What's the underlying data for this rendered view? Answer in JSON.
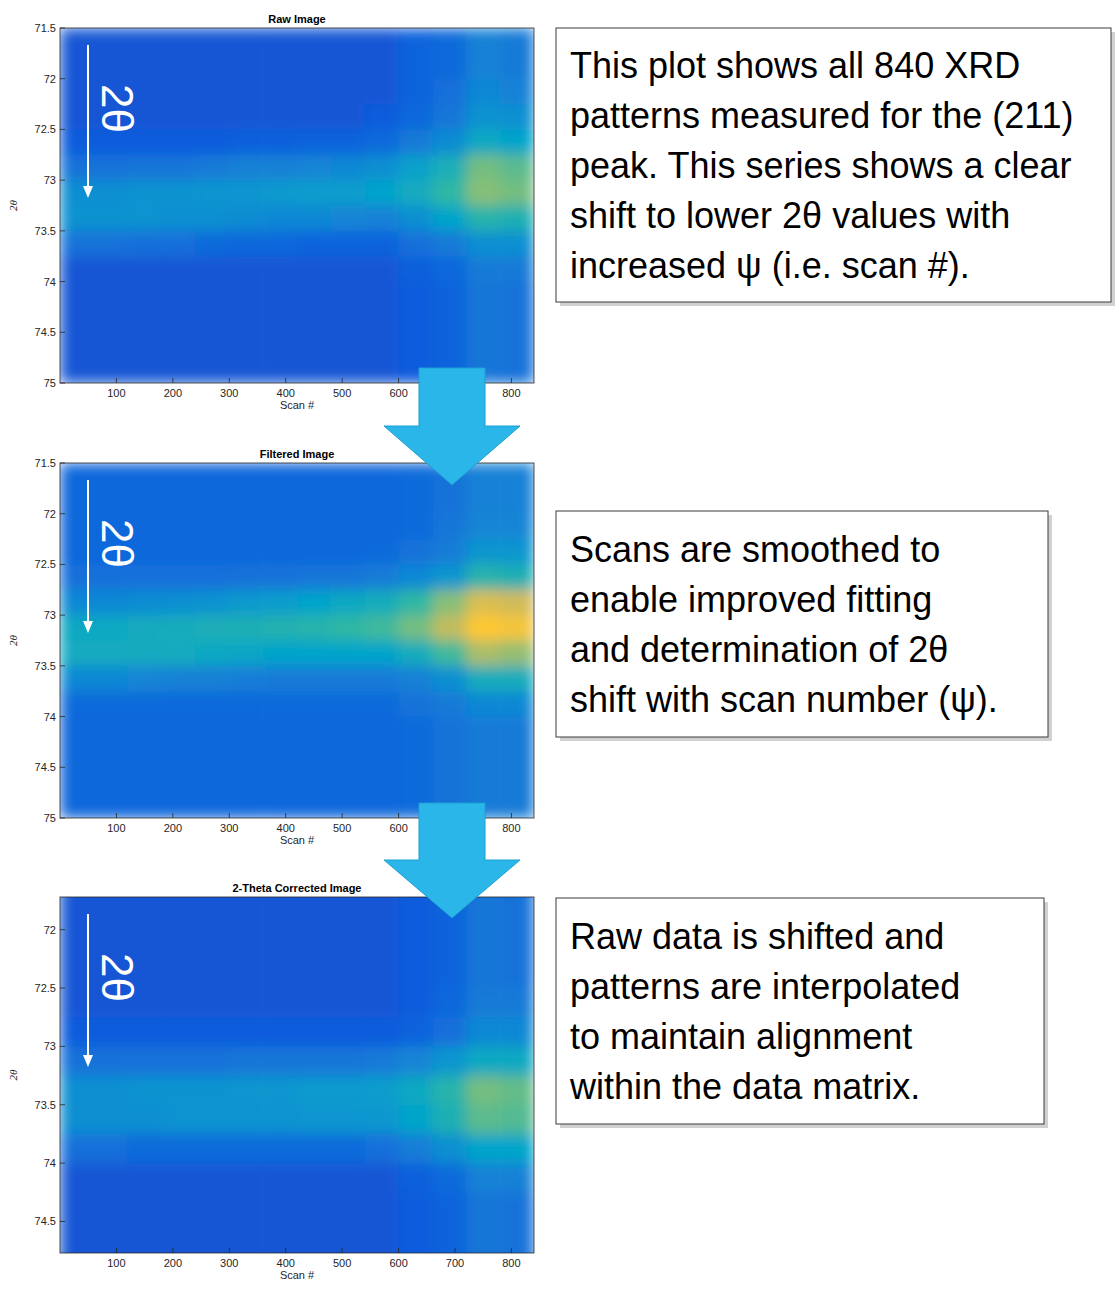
{
  "chart_data": [
    {
      "type": "heatmap",
      "title": "Raw Image",
      "x_label": "Scan #",
      "y_label": "2θ",
      "xlim": [
        0,
        840
      ],
      "ylim": [
        75,
        71.5
      ],
      "xticks": [
        100,
        200,
        300,
        400,
        500,
        600,
        800
      ],
      "yticks": [
        71.5,
        72,
        72.5,
        73,
        73.5,
        74,
        74.5,
        75
      ],
      "x_bins": [
        0,
        60,
        120,
        180,
        240,
        300,
        360,
        420,
        480,
        540,
        600,
        660,
        720,
        780,
        840
      ],
      "y_bins": [
        71.5,
        71.75,
        72,
        72.25,
        72.5,
        72.75,
        73,
        73.25,
        73.5,
        73.75,
        74,
        74.25,
        74.5,
        74.75,
        75
      ],
      "cells": [
        [
          0.09,
          0.09,
          0.09,
          0.09,
          0.09,
          0.09,
          0.09,
          0.09,
          0.09,
          0.09,
          0.12,
          0.14,
          0.2,
          0.18
        ],
        [
          0.09,
          0.09,
          0.09,
          0.09,
          0.09,
          0.09,
          0.09,
          0.09,
          0.09,
          0.09,
          0.12,
          0.14,
          0.2,
          0.18
        ],
        [
          0.09,
          0.09,
          0.09,
          0.09,
          0.09,
          0.09,
          0.09,
          0.09,
          0.09,
          0.09,
          0.12,
          0.15,
          0.22,
          0.2
        ],
        [
          0.09,
          0.09,
          0.09,
          0.09,
          0.09,
          0.09,
          0.09,
          0.09,
          0.09,
          0.1,
          0.13,
          0.17,
          0.25,
          0.24
        ],
        [
          0.1,
          0.1,
          0.1,
          0.1,
          0.1,
          0.11,
          0.11,
          0.12,
          0.12,
          0.14,
          0.18,
          0.23,
          0.32,
          0.3
        ],
        [
          0.16,
          0.16,
          0.17,
          0.17,
          0.18,
          0.2,
          0.2,
          0.21,
          0.22,
          0.24,
          0.29,
          0.35,
          0.48,
          0.45
        ],
        [
          0.24,
          0.24,
          0.25,
          0.25,
          0.26,
          0.26,
          0.27,
          0.28,
          0.28,
          0.3,
          0.33,
          0.4,
          0.5,
          0.48
        ],
        [
          0.25,
          0.25,
          0.25,
          0.24,
          0.24,
          0.23,
          0.22,
          0.22,
          0.21,
          0.2,
          0.24,
          0.3,
          0.38,
          0.36
        ],
        [
          0.16,
          0.16,
          0.15,
          0.15,
          0.14,
          0.13,
          0.13,
          0.12,
          0.12,
          0.12,
          0.15,
          0.18,
          0.24,
          0.24
        ],
        [
          0.09,
          0.09,
          0.09,
          0.09,
          0.09,
          0.09,
          0.09,
          0.09,
          0.09,
          0.09,
          0.11,
          0.13,
          0.18,
          0.18
        ],
        [
          0.09,
          0.09,
          0.09,
          0.09,
          0.09,
          0.09,
          0.09,
          0.09,
          0.09,
          0.09,
          0.1,
          0.12,
          0.17,
          0.16
        ],
        [
          0.09,
          0.09,
          0.09,
          0.09,
          0.09,
          0.09,
          0.09,
          0.09,
          0.09,
          0.09,
          0.1,
          0.12,
          0.17,
          0.16
        ],
        [
          0.09,
          0.09,
          0.09,
          0.09,
          0.09,
          0.09,
          0.09,
          0.09,
          0.09,
          0.09,
          0.1,
          0.12,
          0.17,
          0.16
        ],
        [
          0.09,
          0.09,
          0.09,
          0.09,
          0.09,
          0.09,
          0.09,
          0.09,
          0.09,
          0.09,
          0.1,
          0.12,
          0.17,
          0.16
        ]
      ],
      "zlim": [
        0,
        1
      ],
      "color": "parula",
      "inset_label": "2θ",
      "annotation": [
        "This plot shows all 840 XRD",
        "patterns measured for the (211)",
        "peak.  This series shows a clear",
        "shift to lower 2θ values with",
        "increased ψ (i.e. scan #)."
      ]
    },
    {
      "type": "heatmap",
      "title": "Filtered Image",
      "x_label": "Scan #",
      "y_label": "2θ",
      "xlim": [
        0,
        840
      ],
      "ylim": [
        75,
        71.5
      ],
      "xticks": [
        100,
        200,
        300,
        400,
        500,
        600,
        800
      ],
      "yticks": [
        71.5,
        72,
        72.5,
        73,
        73.5,
        74,
        74.5,
        75
      ],
      "x_bins": [
        0,
        60,
        120,
        180,
        240,
        300,
        360,
        420,
        480,
        540,
        600,
        660,
        720,
        780,
        840
      ],
      "y_bins": [
        71.5,
        71.75,
        72,
        72.25,
        72.5,
        72.75,
        73,
        73.25,
        73.5,
        73.75,
        74,
        74.25,
        74.5,
        74.75,
        75
      ],
      "cells": [
        [
          0.13,
          0.13,
          0.13,
          0.13,
          0.13,
          0.13,
          0.13,
          0.13,
          0.13,
          0.13,
          0.14,
          0.16,
          0.2,
          0.2
        ],
        [
          0.13,
          0.13,
          0.13,
          0.13,
          0.13,
          0.13,
          0.13,
          0.13,
          0.13,
          0.13,
          0.14,
          0.16,
          0.2,
          0.2
        ],
        [
          0.13,
          0.13,
          0.13,
          0.13,
          0.13,
          0.13,
          0.13,
          0.13,
          0.13,
          0.13,
          0.14,
          0.17,
          0.21,
          0.21
        ],
        [
          0.13,
          0.13,
          0.13,
          0.13,
          0.13,
          0.13,
          0.13,
          0.13,
          0.13,
          0.14,
          0.16,
          0.19,
          0.26,
          0.26
        ],
        [
          0.15,
          0.15,
          0.15,
          0.15,
          0.15,
          0.16,
          0.16,
          0.17,
          0.17,
          0.19,
          0.22,
          0.26,
          0.38,
          0.36
        ],
        [
          0.22,
          0.22,
          0.23,
          0.24,
          0.25,
          0.27,
          0.28,
          0.3,
          0.32,
          0.34,
          0.4,
          0.5,
          0.62,
          0.6
        ],
        [
          0.32,
          0.32,
          0.33,
          0.34,
          0.35,
          0.36,
          0.37,
          0.38,
          0.4,
          0.42,
          0.48,
          0.58,
          0.7,
          0.68
        ],
        [
          0.33,
          0.33,
          0.33,
          0.33,
          0.32,
          0.31,
          0.3,
          0.3,
          0.3,
          0.3,
          0.34,
          0.42,
          0.55,
          0.52
        ],
        [
          0.22,
          0.22,
          0.21,
          0.2,
          0.2,
          0.19,
          0.18,
          0.18,
          0.18,
          0.18,
          0.2,
          0.24,
          0.34,
          0.34
        ],
        [
          0.14,
          0.14,
          0.14,
          0.14,
          0.14,
          0.14,
          0.14,
          0.14,
          0.14,
          0.14,
          0.16,
          0.18,
          0.22,
          0.22
        ],
        [
          0.13,
          0.13,
          0.13,
          0.13,
          0.13,
          0.13,
          0.13,
          0.13,
          0.13,
          0.13,
          0.14,
          0.16,
          0.18,
          0.18
        ],
        [
          0.13,
          0.13,
          0.13,
          0.13,
          0.13,
          0.13,
          0.13,
          0.13,
          0.13,
          0.13,
          0.14,
          0.16,
          0.18,
          0.18
        ],
        [
          0.13,
          0.13,
          0.13,
          0.13,
          0.13,
          0.13,
          0.13,
          0.13,
          0.13,
          0.13,
          0.14,
          0.16,
          0.18,
          0.18
        ],
        [
          0.13,
          0.13,
          0.13,
          0.13,
          0.13,
          0.13,
          0.13,
          0.13,
          0.13,
          0.13,
          0.14,
          0.16,
          0.18,
          0.18
        ]
      ],
      "zlim": [
        0,
        1
      ],
      "color": "parula",
      "inset_label": "2θ",
      "annotation": [
        "Scans are smoothed to",
        "enable improved fitting",
        "and determination of 2θ",
        "shift with scan number (ψ)."
      ]
    },
    {
      "type": "heatmap",
      "title": "2-Theta Corrected Image",
      "x_label": "Scan #",
      "y_label": "2θ",
      "xlim": [
        0,
        840
      ],
      "ylim": [
        74.77,
        71.72
      ],
      "xticks": [
        100,
        200,
        300,
        400,
        500,
        600,
        700,
        800
      ],
      "yticks": [
        72,
        72.5,
        73,
        73.5,
        74,
        74.5
      ],
      "x_bins": [
        0,
        60,
        120,
        180,
        240,
        300,
        360,
        420,
        480,
        540,
        600,
        660,
        720,
        780,
        840
      ],
      "y_bins": [
        71.5,
        71.75,
        72,
        72.25,
        72.5,
        72.75,
        73,
        73.25,
        73.5,
        73.75,
        74,
        74.25,
        74.5,
        74.75,
        75
      ],
      "cells": [
        [
          0.09,
          0.09,
          0.09,
          0.09,
          0.09,
          0.09,
          0.09,
          0.09,
          0.09,
          0.09,
          0.1,
          0.12,
          0.17,
          0.16
        ],
        [
          0.09,
          0.09,
          0.09,
          0.09,
          0.09,
          0.09,
          0.09,
          0.09,
          0.09,
          0.09,
          0.1,
          0.12,
          0.17,
          0.16
        ],
        [
          0.09,
          0.09,
          0.09,
          0.09,
          0.09,
          0.09,
          0.09,
          0.09,
          0.09,
          0.09,
          0.1,
          0.12,
          0.17,
          0.16
        ],
        [
          0.09,
          0.09,
          0.09,
          0.09,
          0.09,
          0.09,
          0.09,
          0.09,
          0.09,
          0.09,
          0.1,
          0.12,
          0.17,
          0.16
        ],
        [
          0.09,
          0.09,
          0.09,
          0.09,
          0.09,
          0.09,
          0.09,
          0.09,
          0.09,
          0.09,
          0.1,
          0.13,
          0.18,
          0.18
        ],
        [
          0.1,
          0.1,
          0.1,
          0.1,
          0.1,
          0.1,
          0.1,
          0.1,
          0.1,
          0.1,
          0.12,
          0.15,
          0.22,
          0.22
        ],
        [
          0.16,
          0.16,
          0.16,
          0.16,
          0.16,
          0.17,
          0.17,
          0.17,
          0.17,
          0.18,
          0.21,
          0.26,
          0.32,
          0.32
        ],
        [
          0.24,
          0.24,
          0.25,
          0.25,
          0.25,
          0.26,
          0.26,
          0.27,
          0.27,
          0.28,
          0.32,
          0.38,
          0.48,
          0.46
        ],
        [
          0.24,
          0.24,
          0.24,
          0.25,
          0.25,
          0.25,
          0.25,
          0.26,
          0.26,
          0.26,
          0.3,
          0.36,
          0.45,
          0.44
        ],
        [
          0.15,
          0.15,
          0.14,
          0.14,
          0.14,
          0.14,
          0.14,
          0.14,
          0.14,
          0.15,
          0.19,
          0.24,
          0.3,
          0.3
        ],
        [
          0.09,
          0.09,
          0.09,
          0.09,
          0.09,
          0.09,
          0.09,
          0.09,
          0.09,
          0.09,
          0.11,
          0.14,
          0.2,
          0.2
        ],
        [
          0.09,
          0.09,
          0.09,
          0.09,
          0.09,
          0.09,
          0.09,
          0.09,
          0.09,
          0.09,
          0.1,
          0.12,
          0.17,
          0.16
        ],
        [
          0.09,
          0.09,
          0.09,
          0.09,
          0.09,
          0.09,
          0.09,
          0.09,
          0.09,
          0.09,
          0.1,
          0.12,
          0.17,
          0.16
        ],
        [
          0.09,
          0.09,
          0.09,
          0.09,
          0.09,
          0.09,
          0.09,
          0.09,
          0.09,
          0.09,
          0.1,
          0.12,
          0.17,
          0.16
        ]
      ],
      "zlim": [
        0,
        1
      ],
      "color": "parula",
      "inset_label": "2θ",
      "annotation": [
        "Raw data is shifted and",
        "patterns are interpolated",
        "to maintain alignment",
        "within the data matrix."
      ]
    }
  ]
}
